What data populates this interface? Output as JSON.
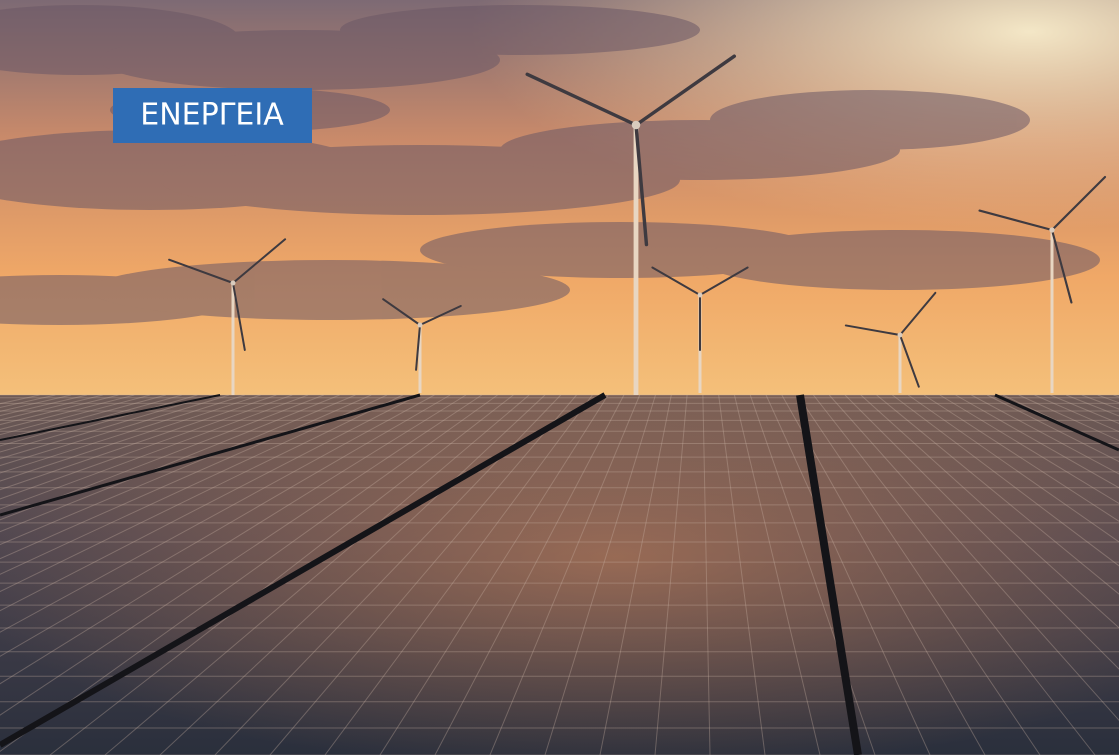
{
  "hero": {
    "category_label": "ΕΝΕΡΓΕΙΑ"
  }
}
